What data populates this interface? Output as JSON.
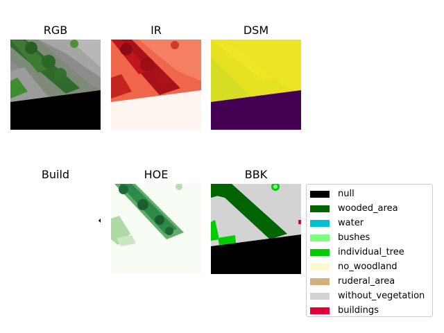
{
  "panels": {
    "rgb": {
      "title": "RGB"
    },
    "ir": {
      "title": "IR"
    },
    "dsm": {
      "title": "DSM"
    },
    "build": {
      "title": "Build"
    },
    "hoe": {
      "title": "HOE"
    },
    "bbk": {
      "title": "BBK"
    }
  },
  "legend": {
    "items": [
      {
        "label": "null",
        "color": "#000000"
      },
      {
        "label": "wooded_area",
        "color": "#006400"
      },
      {
        "label": "water",
        "color": "#00bfcf"
      },
      {
        "label": "bushes",
        "color": "#7cff7c"
      },
      {
        "label": "individual_tree",
        "color": "#00cc00"
      },
      {
        "label": "no_woodland",
        "color": "#fffacd"
      },
      {
        "label": "ruderal_area",
        "color": "#d2b07c"
      },
      {
        "label": "without_vegetation",
        "color": "#d3d3d3"
      },
      {
        "label": "buildings",
        "color": "#e0003a"
      }
    ]
  }
}
